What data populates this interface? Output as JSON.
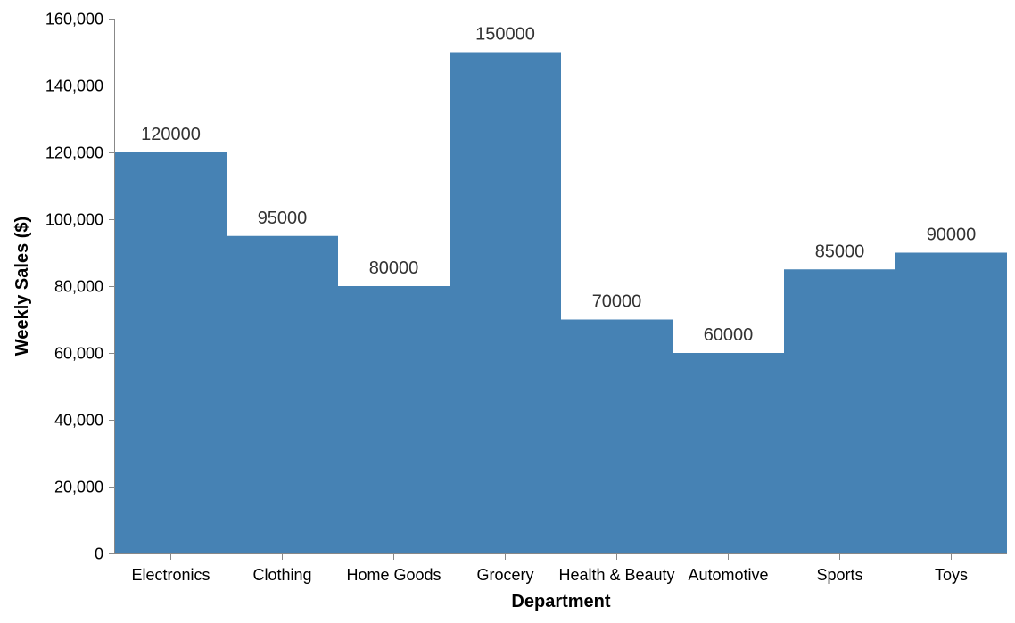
{
  "chart_data": {
    "type": "bar",
    "title": "",
    "xlabel": "Department",
    "ylabel": "Weekly Sales ($)",
    "categories": [
      "Electronics",
      "Clothing",
      "Home Goods",
      "Grocery",
      "Health & Beauty",
      "Automotive",
      "Sports",
      "Toys"
    ],
    "values": [
      120000,
      95000,
      80000,
      150000,
      70000,
      60000,
      85000,
      90000
    ],
    "data_labels": [
      "120000",
      "95000",
      "80000",
      "150000",
      "70000",
      "60000",
      "85000",
      "90000"
    ],
    "ylim": [
      0,
      160000
    ],
    "yticks": [
      0,
      20000,
      40000,
      60000,
      80000,
      100000,
      120000,
      140000,
      160000
    ],
    "ytick_labels": [
      "0",
      "20,000",
      "40,000",
      "60,000",
      "80,000",
      "100,000",
      "120,000",
      "140,000",
      "160,000"
    ],
    "bar_color": "#4682b4",
    "grid": false,
    "legend": "none"
  }
}
